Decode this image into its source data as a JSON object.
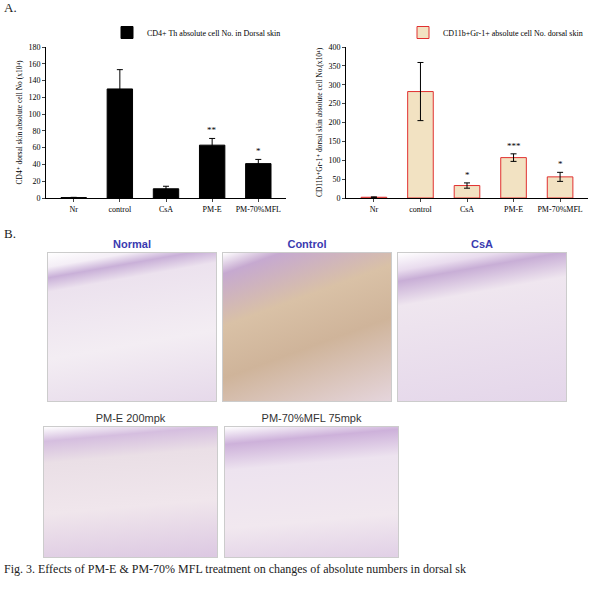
{
  "chart_data": [
    {
      "type": "bar",
      "y_title": "CD4⁺ dorsal skin absolute cell No (x10⁴)",
      "categories": [
        "Nr",
        "control",
        "CsA",
        "PM-E",
        "PM-70%MFL"
      ],
      "series": [
        {
          "name": "CD4+ Th absolute cell No. in Dorsal skin",
          "color": "#000000",
          "values": [
            0.5,
            130,
            11,
            63,
            41
          ],
          "errors": [
            0.3,
            23,
            3,
            8,
            5
          ]
        }
      ],
      "ylim": [
        0,
        180
      ],
      "yticks": [
        0,
        20,
        40,
        60,
        80,
        100,
        120,
        140,
        160,
        180
      ],
      "legend": "top right",
      "annotations": [
        {
          "x": "PM-E",
          "text": "**"
        },
        {
          "x": "PM-70%MFL",
          "text": "*"
        }
      ]
    },
    {
      "type": "bar",
      "y_title": "CD11b⁺Gr-1⁺ dorsal skin absolute cell No.(x10⁴)",
      "categories": [
        "Nr",
        "control",
        "CsA",
        "PM-E",
        "PM-70%MFL"
      ],
      "series": [
        {
          "name": "CD11b+Gr-1+ absolute cell No. dorsal skin",
          "color": "#f2e2c2",
          "values": [
            2,
            282,
            33,
            107,
            56
          ],
          "errors": [
            1,
            77,
            7,
            10,
            12
          ]
        }
      ],
      "ylim": [
        0,
        400
      ],
      "yticks": [
        0,
        50,
        100,
        150,
        200,
        250,
        300,
        350,
        400
      ],
      "legend": "top right",
      "annotations": [
        {
          "x": "CsA",
          "text": "*"
        },
        {
          "x": "PM-E",
          "text": "***"
        },
        {
          "x": "PM-70%MFL",
          "text": "*"
        }
      ]
    }
  ],
  "panel_labels": [
    "A.",
    "B."
  ],
  "micrographs": [
    "Normal",
    "Control",
    "CsA",
    "PM-E 200mpk",
    "PM-70%MFL 75mpk"
  ],
  "caption": "Fig. 3. Effects of PM-E & PM-70% MFL treatment on changes of absolute numbers in dorsal sk"
}
